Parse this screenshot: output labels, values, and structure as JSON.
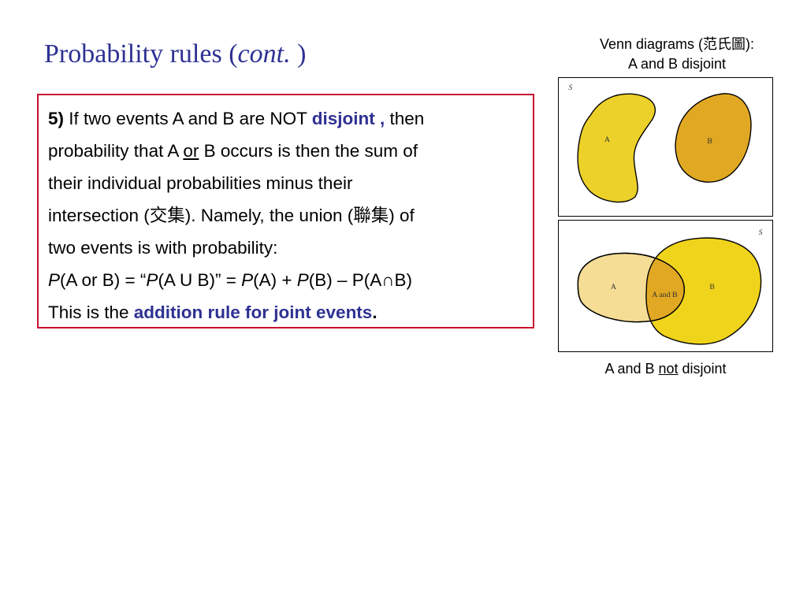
{
  "title": {
    "main": "Probability rules (",
    "italic": "cont.",
    "close": " )"
  },
  "rule": {
    "number": "5)",
    "line1_pre": " If two events A and B are NOT ",
    "line1_term": "disjoint ,",
    "line1_post": " then",
    "line2_pre": "probability that A ",
    "line2_or": "or",
    "line2_post": " B occurs is then the sum of",
    "line3": "their individual probabilities minus their",
    "line4": "intersection (交集). Namely, the union (聯集) of",
    "line5": "two events is with probability:",
    "formula": {
      "p1": "P",
      "t1": "(A or B) = “",
      "p2": "P",
      "t2": "(A U B)” = ",
      "p3": "P",
      "t3": "(A) + ",
      "p4": "P",
      "t4": "(B) – P(A∩B)"
    },
    "line7_pre": "This is the ",
    "line7_term": "addition rule for joint events",
    "line7_post": "."
  },
  "venn": {
    "caption_top_line1": "Venn diagrams (范氏圖):",
    "caption_top_line2": "A and B disjoint",
    "disjoint": {
      "sample_space": "S",
      "label_a": "A",
      "label_b": "B"
    },
    "overlap": {
      "sample_space": "S",
      "label_a": "A",
      "label_b": "B",
      "label_ab": "A and B"
    },
    "caption_bottom_pre": "A and B ",
    "caption_bottom_not": "not",
    "caption_bottom_post": " disjoint",
    "colors": {
      "a_disjoint": "#ecd12a",
      "b_disjoint": "#e1a823",
      "a_light": "#f5dd96",
      "b_bright": "#f0d41c",
      "ab_overlap": "#e1a823"
    }
  }
}
